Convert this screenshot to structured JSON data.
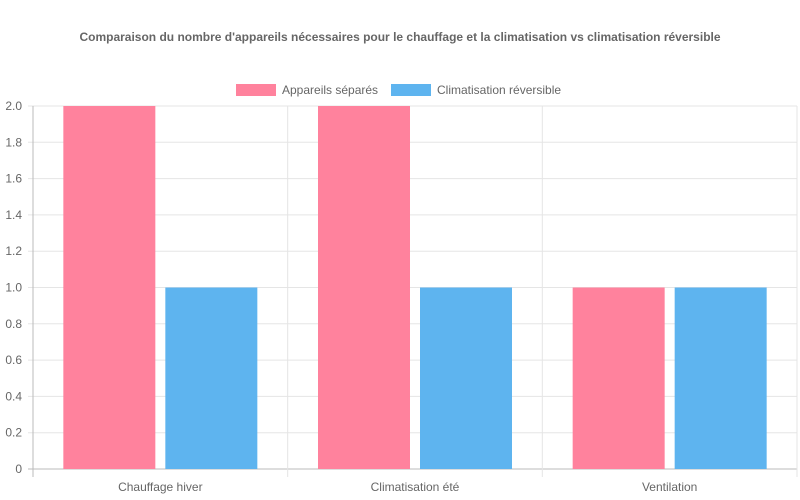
{
  "chart_data": {
    "type": "bar",
    "title": "Comparaison du nombre d'appareils nécessaires pour le chauffage et la climatisation vs climatisation réversible",
    "categories": [
      "Chauffage hiver",
      "Climatisation été",
      "Ventilation"
    ],
    "series": [
      {
        "name": "Appareils séparés",
        "values": [
          2,
          2,
          1
        ],
        "color": "#ff829d"
      },
      {
        "name": "Climatisation réversible",
        "values": [
          1,
          1,
          1
        ],
        "color": "#5eb4ef"
      }
    ],
    "ylim": [
      0,
      2
    ],
    "yticks": [
      "0",
      "0.2",
      "0.4",
      "0.6",
      "0.8",
      "1.0",
      "1.2",
      "1.4",
      "1.6",
      "1.8",
      "2.0"
    ],
    "grid": true,
    "legend": "top-center",
    "xlabel": "",
    "ylabel": ""
  }
}
